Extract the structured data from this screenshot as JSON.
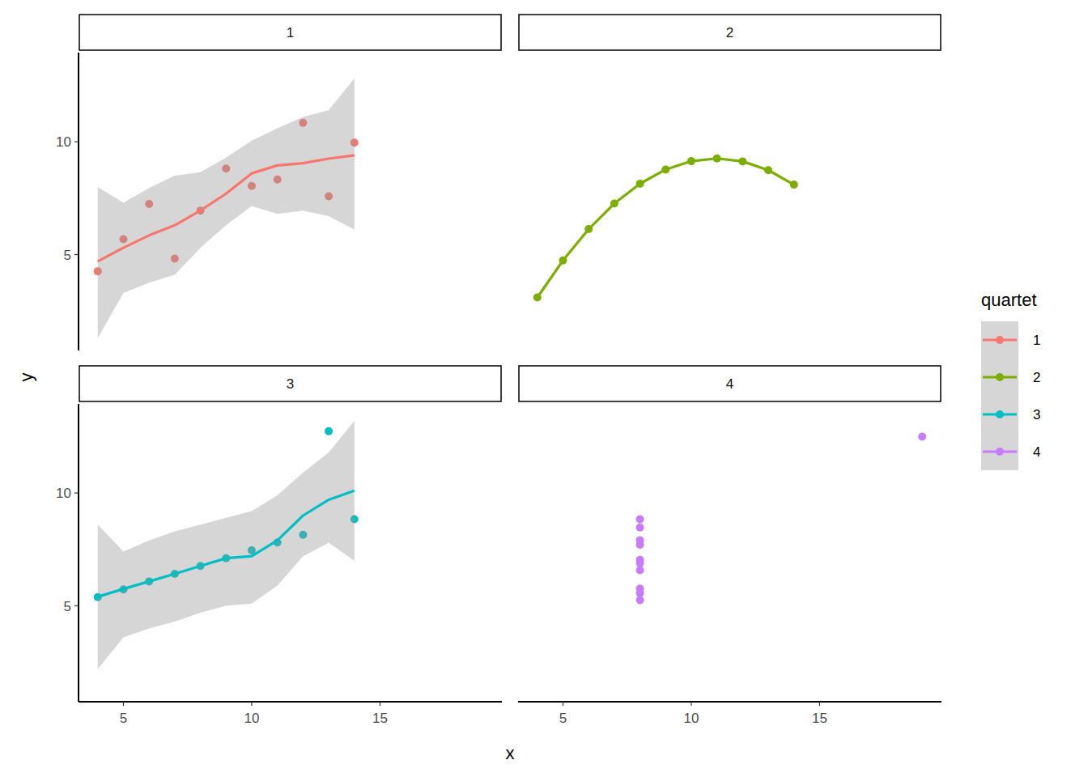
{
  "chart_data": {
    "type": "scatter",
    "x_label": "x",
    "y_label": "y",
    "legend_title": "quartet",
    "legend": "right",
    "xlim": [
      3.25,
      19.75
    ],
    "ylim": [
      0.75,
      13.95
    ],
    "xticks": [
      5,
      10,
      15
    ],
    "yticks": [
      5,
      10
    ],
    "series": [
      {
        "name": "1",
        "color": "#F8766D",
        "x": [
          10,
          8,
          13,
          9,
          11,
          14,
          6,
          4,
          12,
          7,
          5
        ],
        "values": [
          8.04,
          6.95,
          7.58,
          8.81,
          8.33,
          9.96,
          7.24,
          4.26,
          10.84,
          4.82,
          5.68
        ],
        "fit": {
          "x": [
            4,
            5,
            6,
            7,
            8,
            9,
            10,
            11,
            12,
            13,
            14
          ],
          "values": [
            4.7,
            5.3,
            5.85,
            6.3,
            6.95,
            7.7,
            8.6,
            8.95,
            9.05,
            9.25,
            9.4
          ],
          "lower": [
            1.3,
            3.3,
            3.75,
            4.1,
            5.3,
            6.3,
            7.15,
            6.8,
            6.95,
            6.7,
            6.1
          ],
          "upper": [
            8.0,
            7.3,
            7.95,
            8.5,
            8.65,
            9.3,
            10.05,
            10.6,
            11.1,
            11.4,
            12.8
          ]
        }
      },
      {
        "name": "2",
        "color": "#7CAE00",
        "x": [
          10,
          8,
          13,
          9,
          11,
          14,
          6,
          4,
          12,
          7,
          5
        ],
        "values": [
          9.14,
          8.14,
          8.74,
          8.77,
          9.26,
          8.1,
          6.13,
          3.1,
          9.13,
          7.26,
          4.74
        ],
        "fit": {
          "x": [
            4,
            5,
            6,
            7,
            8,
            9,
            10,
            11,
            12,
            13,
            14
          ],
          "values": [
            3.1,
            4.74,
            6.13,
            7.26,
            8.14,
            8.77,
            9.14,
            9.26,
            9.13,
            8.74,
            8.1
          ]
        }
      },
      {
        "name": "3",
        "color": "#00BFC4",
        "x": [
          10,
          8,
          13,
          9,
          11,
          14,
          6,
          4,
          12,
          7,
          5
        ],
        "values": [
          7.46,
          6.77,
          12.74,
          7.11,
          7.81,
          8.84,
          6.08,
          5.39,
          8.15,
          6.42,
          5.73
        ],
        "fit": {
          "x": [
            4,
            5,
            6,
            7,
            8,
            9,
            10,
            11,
            12,
            13,
            14
          ],
          "values": [
            5.4,
            5.75,
            6.08,
            6.42,
            6.77,
            7.11,
            7.2,
            7.9,
            9.0,
            9.7,
            10.1
          ],
          "lower": [
            2.2,
            3.6,
            4.0,
            4.3,
            4.7,
            5.0,
            5.1,
            5.9,
            7.2,
            7.8,
            7.0
          ],
          "upper": [
            8.6,
            7.4,
            7.9,
            8.3,
            8.6,
            8.9,
            9.2,
            9.9,
            10.9,
            11.8,
            13.2
          ]
        }
      },
      {
        "name": "4",
        "color": "#C77CFF",
        "x": [
          8,
          8,
          8,
          8,
          8,
          8,
          8,
          19,
          8,
          8,
          8
        ],
        "values": [
          6.58,
          5.76,
          7.71,
          8.84,
          8.47,
          7.04,
          5.25,
          12.5,
          5.56,
          7.91,
          6.89
        ]
      }
    ]
  }
}
